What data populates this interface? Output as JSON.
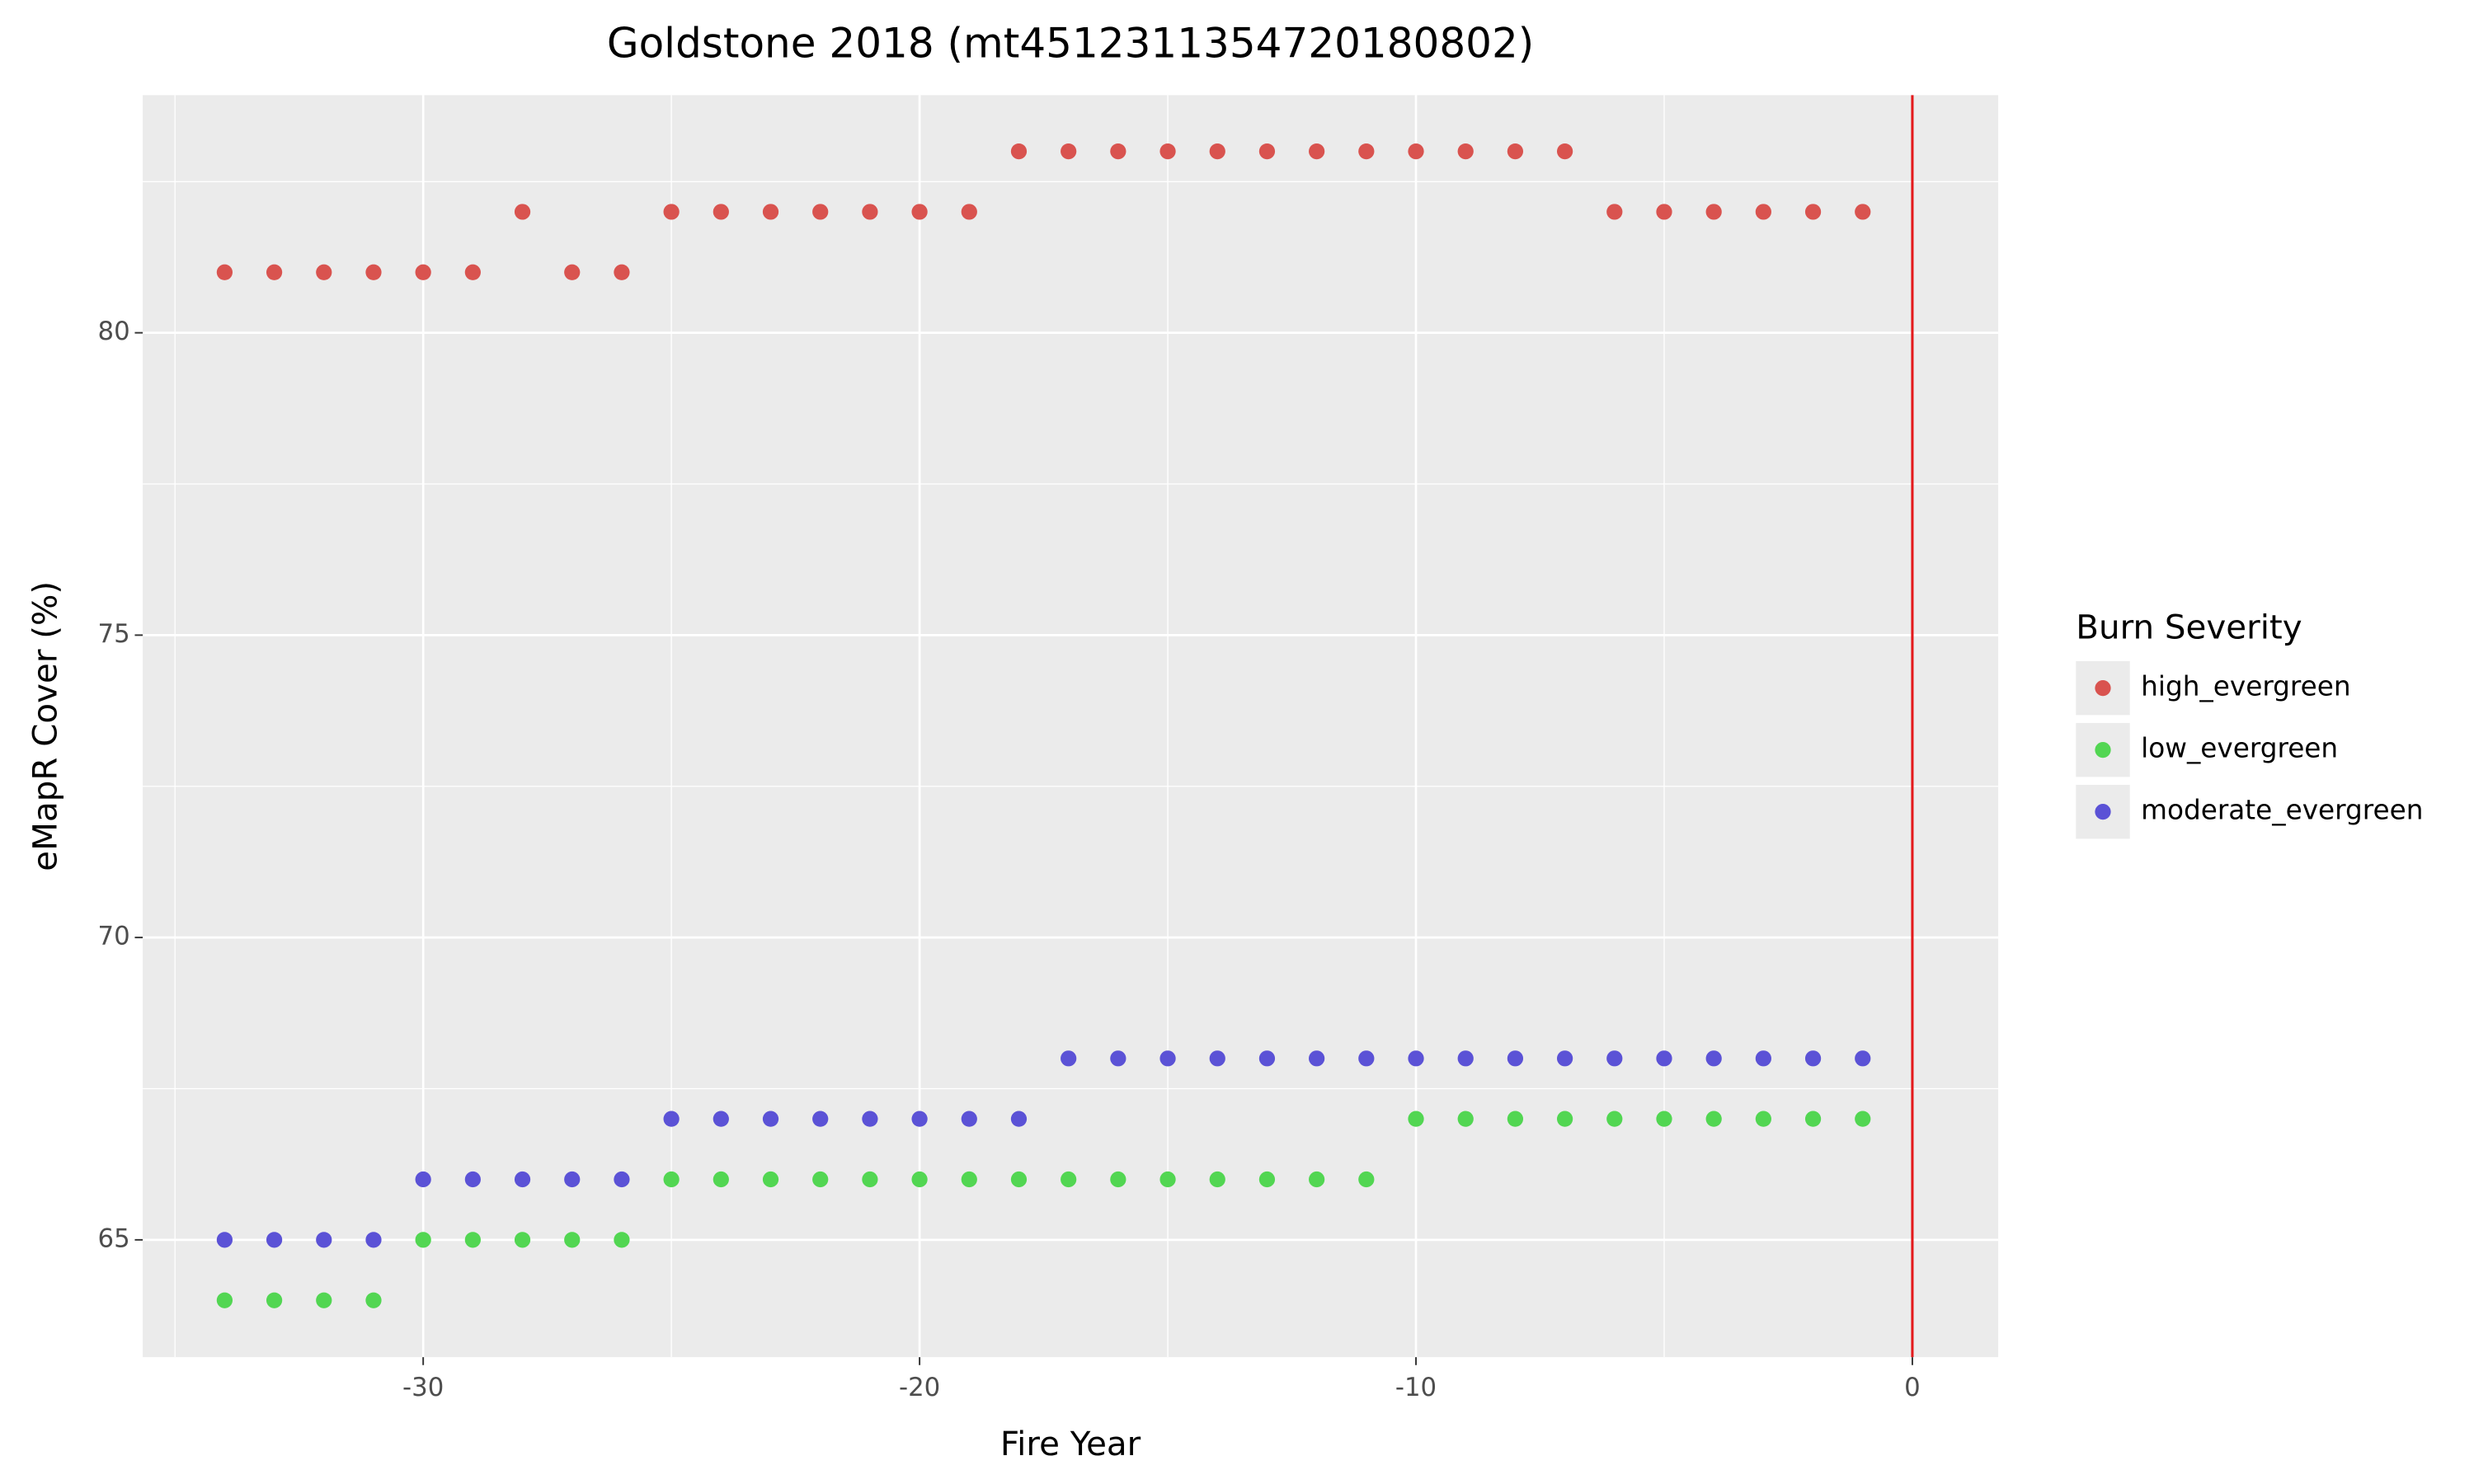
{
  "chart_data": {
    "type": "scatter",
    "title": "Goldstone 2018 (mt4512311354720180802)",
    "x_label": "Fire Year",
    "y_label": "eMapR Cover (%)",
    "legend_title": "Burn Severity",
    "legend_position": "right",
    "x": [
      -34,
      -33,
      -32,
      -31,
      -30,
      -29,
      -28,
      -27,
      -26,
      -25,
      -24,
      -23,
      -22,
      -21,
      -20,
      -19,
      -18,
      -17,
      -16,
      -15,
      -14,
      -13,
      -12,
      -11,
      -10,
      -9,
      -8,
      -7,
      -6,
      -5,
      -4,
      -3,
      -2,
      -1
    ],
    "series": [
      {
        "name": "high_evergreen",
        "color": "#d9534f",
        "values": [
          81,
          81,
          81,
          81,
          81,
          81,
          82,
          81,
          81,
          82,
          82,
          82,
          82,
          82,
          82,
          82,
          83,
          83,
          83,
          83,
          83,
          83,
          83,
          83,
          83,
          83,
          83,
          83,
          82,
          82,
          82,
          82,
          82,
          82
        ]
      },
      {
        "name": "low_evergreen",
        "color": "#52d652",
        "values": [
          64,
          64,
          64,
          64,
          65,
          65,
          65,
          65,
          65,
          66,
          66,
          66,
          66,
          66,
          66,
          66,
          66,
          66,
          66,
          66,
          66,
          66,
          66,
          66,
          67,
          67,
          67,
          67,
          67,
          67,
          67,
          67,
          67,
          67
        ]
      },
      {
        "name": "moderate_evergreen",
        "color": "#5b52d6",
        "values": [
          65,
          65,
          65,
          65,
          66,
          66,
          66,
          66,
          66,
          67,
          67,
          67,
          67,
          67,
          67,
          67,
          67,
          68,
          68,
          68,
          68,
          68,
          68,
          68,
          68,
          68,
          68,
          68,
          68,
          68,
          68,
          68,
          68,
          68
        ]
      }
    ],
    "xlim": [
      -35.65,
      1.73
    ],
    "xticks": [
      -30,
      -20,
      -10,
      0
    ],
    "ylim": [
      63.06,
      83.93
    ],
    "yticks": [
      65,
      70,
      75,
      80
    ],
    "vline": 0,
    "vline_color": "#e41a1c",
    "grid": true
  }
}
